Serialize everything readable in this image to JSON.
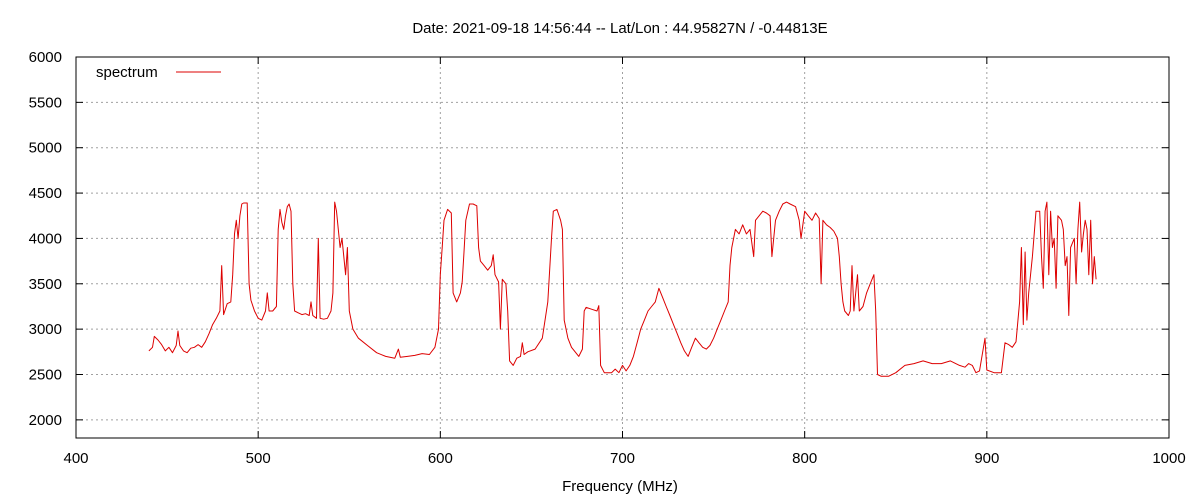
{
  "chart_data": {
    "type": "line",
    "title": "Date: 2021-09-18 14:56:44  --  Lat/Lon : 44.95827N / -0.44813E",
    "xlabel": "Frequency (MHz)",
    "ylabel": "",
    "xlim": [
      400,
      1000
    ],
    "ylim": [
      1800,
      6000
    ],
    "xticks": [
      400,
      500,
      600,
      700,
      800,
      900,
      1000
    ],
    "yticks": [
      2000,
      2500,
      3000,
      3500,
      4000,
      4500,
      5000,
      5500,
      6000
    ],
    "grid": true,
    "legend": "top-left",
    "series": [
      {
        "name": "spectrum",
        "color": "#dd0000",
        "points": [
          [
            440,
            2760
          ],
          [
            442,
            2800
          ],
          [
            443,
            2920
          ],
          [
            445,
            2880
          ],
          [
            447,
            2830
          ],
          [
            449,
            2760
          ],
          [
            451,
            2800
          ],
          [
            453,
            2740
          ],
          [
            455,
            2820
          ],
          [
            456,
            2980
          ],
          [
            457,
            2820
          ],
          [
            459,
            2760
          ],
          [
            461,
            2740
          ],
          [
            463,
            2790
          ],
          [
            465,
            2800
          ],
          [
            467,
            2830
          ],
          [
            469,
            2800
          ],
          [
            471,
            2860
          ],
          [
            473,
            2950
          ],
          [
            475,
            3050
          ],
          [
            477,
            3120
          ],
          [
            479,
            3200
          ],
          [
            480,
            3700
          ],
          [
            481,
            3160
          ],
          [
            483,
            3280
          ],
          [
            485,
            3300
          ],
          [
            486,
            3600
          ],
          [
            487,
            4050
          ],
          [
            488,
            4200
          ],
          [
            489,
            4000
          ],
          [
            490,
            4250
          ],
          [
            491,
            4380
          ],
          [
            492,
            4390
          ],
          [
            494,
            4390
          ],
          [
            495,
            3500
          ],
          [
            496,
            3320
          ],
          [
            498,
            3200
          ],
          [
            500,
            3120
          ],
          [
            502,
            3100
          ],
          [
            504,
            3200
          ],
          [
            505,
            3400
          ],
          [
            506,
            3200
          ],
          [
            508,
            3200
          ],
          [
            510,
            3250
          ],
          [
            511,
            4100
          ],
          [
            512,
            4320
          ],
          [
            513,
            4180
          ],
          [
            514,
            4100
          ],
          [
            515,
            4250
          ],
          [
            516,
            4350
          ],
          [
            517,
            4380
          ],
          [
            518,
            4300
          ],
          [
            519,
            3500
          ],
          [
            520,
            3200
          ],
          [
            522,
            3180
          ],
          [
            524,
            3160
          ],
          [
            526,
            3170
          ],
          [
            528,
            3150
          ],
          [
            529,
            3300
          ],
          [
            530,
            3150
          ],
          [
            532,
            3120
          ],
          [
            533,
            4000
          ],
          [
            534,
            3120
          ],
          [
            536,
            3110
          ],
          [
            538,
            3120
          ],
          [
            540,
            3200
          ],
          [
            541,
            3400
          ],
          [
            542,
            4400
          ],
          [
            543,
            4300
          ],
          [
            544,
            4100
          ],
          [
            545,
            3900
          ],
          [
            546,
            4000
          ],
          [
            547,
            3800
          ],
          [
            548,
            3600
          ],
          [
            549,
            3900
          ],
          [
            550,
            3200
          ],
          [
            552,
            3000
          ],
          [
            555,
            2900
          ],
          [
            560,
            2820
          ],
          [
            565,
            2740
          ],
          [
            570,
            2700
          ],
          [
            575,
            2680
          ],
          [
            577,
            2780
          ],
          [
            578,
            2690
          ],
          [
            582,
            2700
          ],
          [
            586,
            2710
          ],
          [
            590,
            2730
          ],
          [
            594,
            2720
          ],
          [
            597,
            2800
          ],
          [
            599,
            3000
          ],
          [
            600,
            3600
          ],
          [
            601,
            3900
          ],
          [
            602,
            4200
          ],
          [
            604,
            4320
          ],
          [
            606,
            4280
          ],
          [
            607,
            3400
          ],
          [
            609,
            3300
          ],
          [
            611,
            3400
          ],
          [
            612,
            3520
          ],
          [
            613,
            3850
          ],
          [
            614,
            4200
          ],
          [
            616,
            4380
          ],
          [
            618,
            4380
          ],
          [
            620,
            4360
          ],
          [
            621,
            3900
          ],
          [
            622,
            3750
          ],
          [
            624,
            3700
          ],
          [
            626,
            3650
          ],
          [
            628,
            3700
          ],
          [
            629,
            3820
          ],
          [
            630,
            3600
          ],
          [
            632,
            3520
          ],
          [
            633,
            3000
          ],
          [
            634,
            3550
          ],
          [
            636,
            3500
          ],
          [
            637,
            3200
          ],
          [
            638,
            2650
          ],
          [
            640,
            2600
          ],
          [
            642,
            2680
          ],
          [
            644,
            2700
          ],
          [
            645,
            2850
          ],
          [
            646,
            2720
          ],
          [
            648,
            2750
          ],
          [
            652,
            2780
          ],
          [
            656,
            2900
          ],
          [
            659,
            3300
          ],
          [
            661,
            4000
          ],
          [
            662,
            4300
          ],
          [
            664,
            4320
          ],
          [
            666,
            4200
          ],
          [
            667,
            4100
          ],
          [
            668,
            3100
          ],
          [
            670,
            2900
          ],
          [
            672,
            2800
          ],
          [
            674,
            2750
          ],
          [
            676,
            2700
          ],
          [
            678,
            2780
          ],
          [
            679,
            3200
          ],
          [
            680,
            3240
          ],
          [
            683,
            3220
          ],
          [
            686,
            3200
          ],
          [
            687,
            3260
          ],
          [
            688,
            2600
          ],
          [
            690,
            2520
          ],
          [
            694,
            2520
          ],
          [
            696,
            2560
          ],
          [
            698,
            2520
          ],
          [
            700,
            2600
          ],
          [
            702,
            2540
          ],
          [
            704,
            2600
          ],
          [
            706,
            2700
          ],
          [
            708,
            2850
          ],
          [
            710,
            3000
          ],
          [
            712,
            3100
          ],
          [
            714,
            3200
          ],
          [
            716,
            3250
          ],
          [
            718,
            3300
          ],
          [
            720,
            3450
          ],
          [
            722,
            3350
          ],
          [
            724,
            3250
          ],
          [
            726,
            3150
          ],
          [
            728,
            3050
          ],
          [
            730,
            2950
          ],
          [
            732,
            2850
          ],
          [
            734,
            2760
          ],
          [
            736,
            2700
          ],
          [
            738,
            2800
          ],
          [
            740,
            2900
          ],
          [
            742,
            2850
          ],
          [
            744,
            2800
          ],
          [
            746,
            2780
          ],
          [
            748,
            2820
          ],
          [
            750,
            2900
          ],
          [
            752,
            3000
          ],
          [
            754,
            3100
          ],
          [
            756,
            3200
          ],
          [
            758,
            3300
          ],
          [
            759,
            3700
          ],
          [
            760,
            3900
          ],
          [
            762,
            4100
          ],
          [
            764,
            4050
          ],
          [
            766,
            4150
          ],
          [
            768,
            4050
          ],
          [
            770,
            4100
          ],
          [
            772,
            3800
          ],
          [
            773,
            4200
          ],
          [
            775,
            4250
          ],
          [
            777,
            4300
          ],
          [
            779,
            4280
          ],
          [
            781,
            4250
          ],
          [
            782,
            3800
          ],
          [
            784,
            4200
          ],
          [
            786,
            4300
          ],
          [
            788,
            4380
          ],
          [
            790,
            4400
          ],
          [
            792,
            4380
          ],
          [
            795,
            4350
          ],
          [
            797,
            4200
          ],
          [
            798,
            4000
          ],
          [
            800,
            4300
          ],
          [
            802,
            4250
          ],
          [
            804,
            4200
          ],
          [
            806,
            4280
          ],
          [
            808,
            4220
          ],
          [
            809,
            3500
          ],
          [
            810,
            4200
          ],
          [
            812,
            4150
          ],
          [
            814,
            4120
          ],
          [
            816,
            4080
          ],
          [
            818,
            4000
          ],
          [
            819,
            3800
          ],
          [
            820,
            3500
          ],
          [
            821,
            3300
          ],
          [
            822,
            3200
          ],
          [
            824,
            3150
          ],
          [
            825,
            3200
          ],
          [
            826,
            3700
          ],
          [
            827,
            3200
          ],
          [
            828,
            3400
          ],
          [
            829,
            3600
          ],
          [
            830,
            3200
          ],
          [
            832,
            3250
          ],
          [
            834,
            3400
          ],
          [
            836,
            3500
          ],
          [
            838,
            3600
          ],
          [
            839,
            3200
          ],
          [
            840,
            2500
          ],
          [
            842,
            2480
          ],
          [
            846,
            2480
          ],
          [
            850,
            2520
          ],
          [
            855,
            2600
          ],
          [
            860,
            2620
          ],
          [
            865,
            2650
          ],
          [
            870,
            2620
          ],
          [
            875,
            2620
          ],
          [
            880,
            2650
          ],
          [
            885,
            2600
          ],
          [
            888,
            2580
          ],
          [
            890,
            2620
          ],
          [
            892,
            2600
          ],
          [
            894,
            2520
          ],
          [
            896,
            2540
          ],
          [
            899,
            2900
          ],
          [
            900,
            2550
          ],
          [
            904,
            2520
          ],
          [
            908,
            2520
          ],
          [
            910,
            2850
          ],
          [
            912,
            2830
          ],
          [
            914,
            2800
          ],
          [
            916,
            2860
          ],
          [
            918,
            3300
          ],
          [
            919,
            3900
          ],
          [
            920,
            3050
          ],
          [
            921,
            3850
          ],
          [
            922,
            3100
          ],
          [
            923,
            3400
          ],
          [
            925,
            3800
          ],
          [
            926,
            4050
          ],
          [
            927,
            4300
          ],
          [
            929,
            4300
          ],
          [
            930,
            3800
          ],
          [
            931,
            3450
          ],
          [
            932,
            4300
          ],
          [
            933,
            4400
          ],
          [
            934,
            3600
          ],
          [
            935,
            4300
          ],
          [
            936,
            3900
          ],
          [
            937,
            4000
          ],
          [
            938,
            3450
          ],
          [
            939,
            4250
          ],
          [
            941,
            4200
          ],
          [
            942,
            4100
          ],
          [
            943,
            3700
          ],
          [
            944,
            3800
          ],
          [
            945,
            3150
          ],
          [
            946,
            3900
          ],
          [
            948,
            4000
          ],
          [
            949,
            3500
          ],
          [
            950,
            4100
          ],
          [
            951,
            4400
          ],
          [
            952,
            3850
          ],
          [
            953,
            4050
          ],
          [
            954,
            4200
          ],
          [
            955,
            4100
          ],
          [
            956,
            3600
          ],
          [
            957,
            4200
          ],
          [
            958,
            3500
          ],
          [
            959,
            3800
          ],
          [
            960,
            3550
          ]
        ]
      }
    ]
  }
}
